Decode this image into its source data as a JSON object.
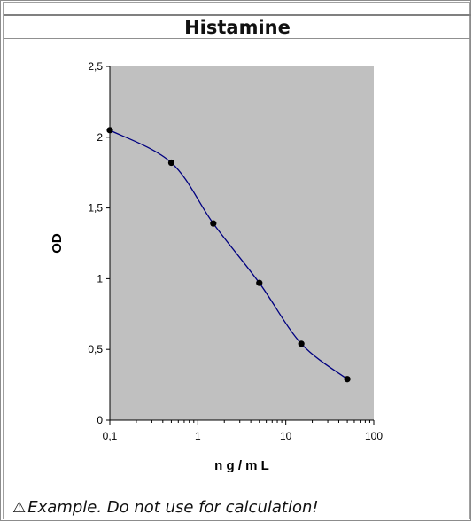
{
  "header": {
    "title": "Histamine"
  },
  "footer": {
    "warning_icon": "warning-triangle-icon",
    "warning_glyph": "⚠",
    "note": "Example. Do not use for calculation!"
  },
  "chart_data": {
    "type": "line",
    "title": "Histamine",
    "xlabel": "n g / m L",
    "ylabel": "OD",
    "x_scale": "log",
    "xlim": [
      0.1,
      100
    ],
    "ylim": [
      0,
      2.5
    ],
    "x_ticks": [
      0.1,
      1,
      10,
      100
    ],
    "x_tick_labels": [
      "0,1",
      "1",
      "10",
      "100"
    ],
    "y_ticks": [
      0,
      0.5,
      1,
      1.5,
      2,
      2.5
    ],
    "y_tick_labels": [
      "0",
      "0,5",
      "1",
      "1,5",
      "2",
      "2,5"
    ],
    "grid": false,
    "plot_background": "#c0c0c0",
    "line_color": "#000080",
    "marker_color": "#000000",
    "x": [
      0.1,
      0.5,
      1.5,
      5,
      15,
      50
    ],
    "y": [
      2.05,
      1.82,
      1.39,
      0.97,
      0.54,
      0.29
    ]
  }
}
